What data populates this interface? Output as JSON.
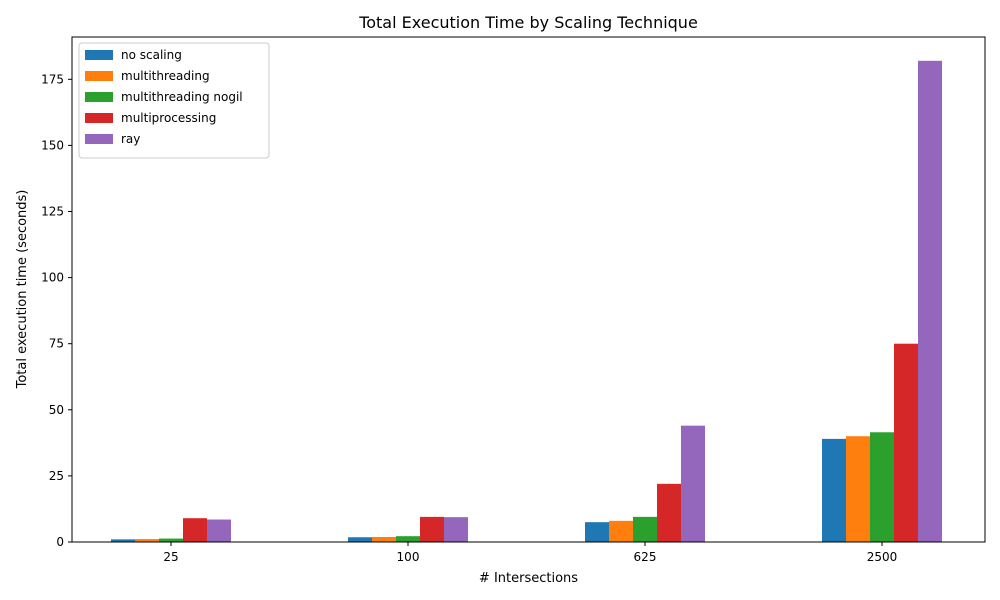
{
  "chart_data": {
    "type": "bar",
    "title": "Total Execution Time by Scaling Technique",
    "xlabel": "# Intersections",
    "ylabel": "Total execution time (seconds)",
    "categories": [
      "25",
      "100",
      "625",
      "2500"
    ],
    "ylim": [
      0,
      191
    ],
    "yticks": [
      0,
      25,
      50,
      75,
      100,
      125,
      150,
      175
    ],
    "grid": false,
    "legend_position": "top-left",
    "series": [
      {
        "name": "no scaling",
        "color": "#1f77b4",
        "values": [
          1.0,
          1.8,
          7.5,
          39.0
        ]
      },
      {
        "name": "multithreading",
        "color": "#ff7f0e",
        "values": [
          1.1,
          1.9,
          8.0,
          40.0
        ]
      },
      {
        "name": "multithreading nogil",
        "color": "#2ca02c",
        "values": [
          1.3,
          2.2,
          9.5,
          41.5
        ]
      },
      {
        "name": "multiprocessing",
        "color": "#d62728",
        "values": [
          9.0,
          9.5,
          22.0,
          75.0
        ]
      },
      {
        "name": "ray",
        "color": "#9467bd",
        "values": [
          8.5,
          9.4,
          44.0,
          182.0
        ]
      }
    ]
  }
}
